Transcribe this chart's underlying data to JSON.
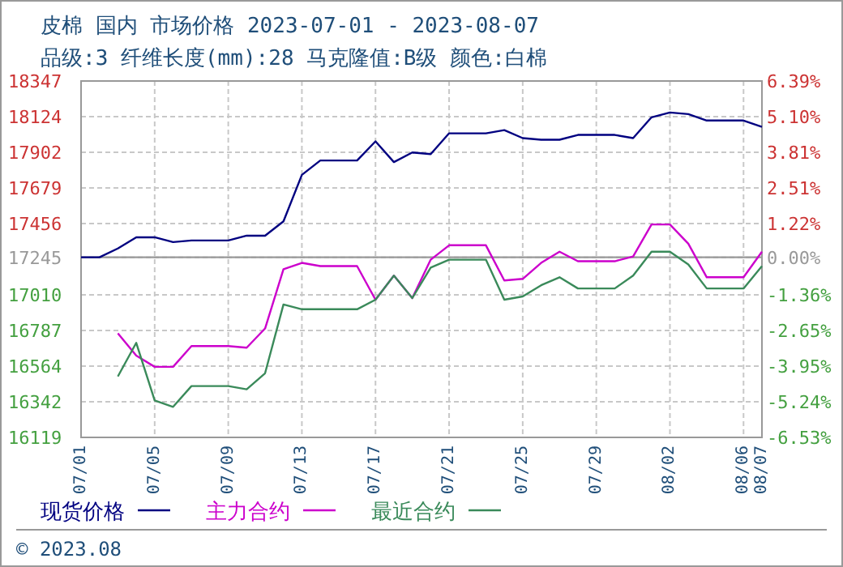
{
  "chart_data": {
    "type": "line",
    "title": "皮棉 国内 市场价格 2023-07-01 - 2023-08-07",
    "subtitle": "品级:3 纤维长度(mm):28 马克隆值:B级 颜色:白棉",
    "annotations": [
      "© 2023.08"
    ],
    "series": [
      {
        "name": "现货价格",
        "color": "#000080",
        "x": [
          "--07-01",
          "--07-02",
          "--07-03",
          "--07-04",
          "--07-05",
          "--07-06",
          "--07-07",
          "--07-09",
          "--07-10",
          "--07-11",
          "--07-12",
          "--07-13",
          "--07-14",
          "--07-16",
          "--07-17",
          "--07-18",
          "--07-19",
          "--07-20",
          "--07-21",
          "--07-23",
          "--07-24",
          "--07-25",
          "--07-26",
          "--07-27",
          "--07-28",
          "--07-30",
          "--07-31",
          "--08-01",
          "--08-02",
          "--08-03",
          "--08-04",
          "--08-06",
          "--08-07"
        ],
        "values": [
          17245,
          17245,
          17300,
          17370,
          17370,
          17340,
          17350,
          17350,
          17380,
          17380,
          17470,
          17760,
          17850,
          17850,
          17970,
          17840,
          17900,
          17890,
          18020,
          18020,
          18040,
          17990,
          17980,
          17980,
          18010,
          18010,
          17990,
          18120,
          18150,
          18140,
          18100,
          18100,
          18060
        ]
      },
      {
        "name": "主力合约",
        "color": "#cc00cc",
        "x": [
          "--07-03",
          "--07-04",
          "--07-05",
          "--07-06",
          "--07-07",
          "--07-09",
          "--07-10",
          "--07-11",
          "--07-12",
          "--07-13",
          "--07-14",
          "--07-16",
          "--07-17",
          "--07-18",
          "--07-19",
          "--07-20",
          "--07-21",
          "--07-23",
          "--07-24",
          "--07-25",
          "--07-26",
          "--07-27",
          "--07-28",
          "--07-30",
          "--07-31",
          "--08-01",
          "--08-02",
          "--08-03",
          "--08-04",
          "--08-06",
          "--08-07"
        ],
        "values": [
          16770,
          16630,
          16560,
          16560,
          16690,
          16690,
          16680,
          16800,
          17170,
          17210,
          17190,
          17190,
          16980,
          17130,
          16990,
          17230,
          17320,
          17320,
          17100,
          17110,
          17210,
          17280,
          17220,
          17220,
          17250,
          17450,
          17450,
          17330,
          17120,
          17120,
          17280
        ]
      },
      {
        "name": "最近合约",
        "color": "#3a8a5a",
        "x": [
          "--07-03",
          "--07-04",
          "--07-05",
          "--07-06",
          "--07-07",
          "--07-09",
          "--07-10",
          "--07-11",
          "--07-12",
          "--07-13",
          "--07-16",
          "--07-17",
          "--07-18",
          "--07-19",
          "--07-20",
          "--07-21",
          "--07-23",
          "--07-24",
          "--07-25",
          "--07-26",
          "--07-27",
          "--07-28",
          "--07-30",
          "--07-31",
          "--08-01",
          "--08-02",
          "--08-03",
          "--08-04",
          "--08-06",
          "--08-07"
        ],
        "values": [
          16500,
          16710,
          16350,
          16310,
          16440,
          16440,
          16420,
          16520,
          16950,
          16920,
          16920,
          16980,
          17130,
          16990,
          17180,
          17230,
          17230,
          16980,
          17000,
          17070,
          17120,
          17050,
          17050,
          17130,
          17280,
          17280,
          17200,
          17050,
          17050,
          17190
        ]
      }
    ],
    "xlim": [
      "--07-01",
      "--08-07"
    ],
    "xticks": [
      {
        "value": "--07-01",
        "label": "07/01"
      },
      {
        "value": "--07-05",
        "label": "07/05"
      },
      {
        "value": "--07-09",
        "label": "07/09"
      },
      {
        "value": "--07-13",
        "label": "07/13"
      },
      {
        "value": "--07-17",
        "label": "07/17"
      },
      {
        "value": "--07-21",
        "label": "07/21"
      },
      {
        "value": "--07-25",
        "label": "07/25"
      },
      {
        "value": "--07-29",
        "label": "07/29"
      },
      {
        "value": "--08-02",
        "label": "08/02"
      },
      {
        "value": "--08-06",
        "label": "08/06"
      },
      {
        "value": "--08-07",
        "label": "08/07"
      }
    ],
    "ylim": [
      16119,
      18347
    ],
    "yticks": [
      16119,
      16342,
      16564,
      16787,
      17010,
      17245,
      17456,
      17679,
      17902,
      18124,
      18347
    ],
    "y2lim": [
      -6.53,
      6.39
    ],
    "y2ticks": [
      {
        "value": -6.53,
        "label": "-6.53%"
      },
      {
        "value": -5.24,
        "label": "-5.24%"
      },
      {
        "value": -3.95,
        "label": "-3.95%"
      },
      {
        "value": -2.65,
        "label": "-2.65%"
      },
      {
        "value": -1.36,
        "label": "-1.36%"
      },
      {
        "value": 0,
        "label": "0.00%"
      },
      {
        "value": 1.22,
        "label": "1.22%"
      },
      {
        "value": 2.51,
        "label": "2.51%"
      },
      {
        "value": 3.81,
        "label": "3.81%"
      },
      {
        "value": 5.1,
        "label": "5.10%"
      },
      {
        "value": 6.39,
        "label": "6.39%"
      }
    ],
    "ref_lines": [
      {
        "axis": "y",
        "value": 17245,
        "color": "#999999"
      }
    ],
    "grid": true,
    "legend": "bottom",
    "line_style": "solid"
  }
}
